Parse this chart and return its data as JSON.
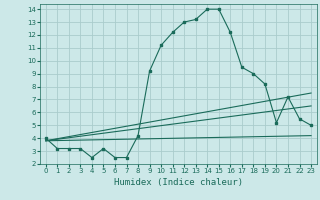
{
  "xlabel": "Humidex (Indice chaleur)",
  "bg_color": "#cce8e8",
  "grid_color": "#aacccc",
  "line_color": "#1a6b5a",
  "xlim": [
    -0.5,
    23.5
  ],
  "ylim": [
    2,
    14.4
  ],
  "xticks": [
    0,
    1,
    2,
    3,
    4,
    5,
    6,
    7,
    8,
    9,
    10,
    11,
    12,
    13,
    14,
    15,
    16,
    17,
    18,
    19,
    20,
    21,
    22,
    23
  ],
  "yticks": [
    2,
    3,
    4,
    5,
    6,
    7,
    8,
    9,
    10,
    11,
    12,
    13,
    14
  ],
  "line1_x": [
    0,
    1,
    2,
    3,
    4,
    5,
    6,
    7,
    8,
    9,
    10,
    11,
    12,
    13,
    14,
    15,
    16,
    17,
    18,
    19,
    20,
    21,
    22,
    23
  ],
  "line1_y": [
    4.0,
    3.2,
    3.2,
    3.2,
    2.5,
    3.2,
    2.5,
    2.5,
    4.2,
    9.2,
    11.2,
    12.2,
    13.0,
    13.2,
    14.0,
    14.0,
    12.2,
    9.5,
    9.0,
    8.2,
    5.2,
    7.2,
    5.5,
    5.0
  ],
  "line2_x": [
    0,
    23
  ],
  "line2_y": [
    3.8,
    7.5
  ],
  "line3_x": [
    0,
    23
  ],
  "line3_y": [
    3.8,
    6.5
  ],
  "line4_x": [
    0,
    23
  ],
  "line4_y": [
    3.8,
    4.2
  ],
  "xlabel_fontsize": 6.5,
  "tick_fontsize": 5.0,
  "lw": 0.8,
  "marker_size": 1.8
}
